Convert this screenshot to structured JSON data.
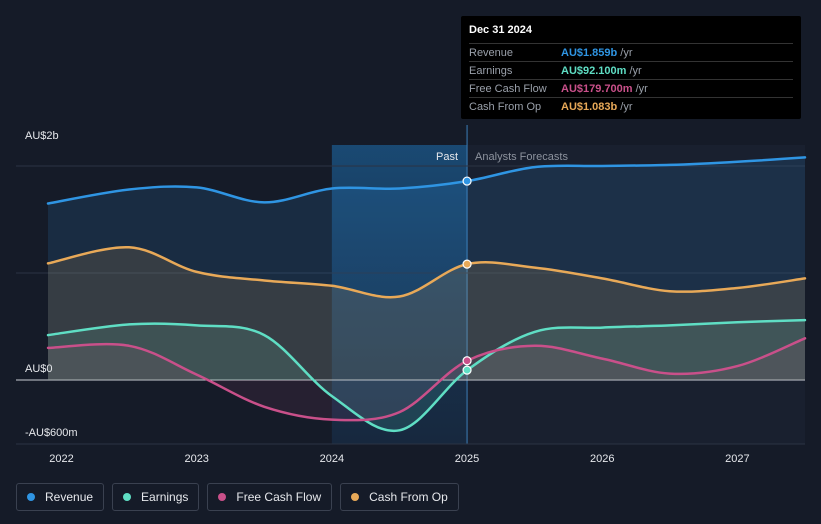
{
  "chart_data": {
    "type": "area",
    "x_range": [
      2021.9,
      2027.5
    ],
    "y_range": [
      -600,
      2000
    ],
    "split_x": 2025.0,
    "highlight_x": [
      2024.0,
      2025.0
    ],
    "y_labels": [
      {
        "value": 2000,
        "label": "AU$2b"
      },
      {
        "value": 0,
        "label": "AU$0"
      },
      {
        "value": -600,
        "label": "-AU$600m"
      }
    ],
    "gridlines": [
      2000,
      1000
    ],
    "x_ticks": [
      {
        "value": 2022,
        "label": "2022"
      },
      {
        "value": 2023,
        "label": "2023"
      },
      {
        "value": 2024,
        "label": "2024"
      },
      {
        "value": 2025,
        "label": "2025"
      },
      {
        "value": 2026,
        "label": "2026"
      },
      {
        "value": 2027,
        "label": "2027"
      }
    ],
    "past_label": "Past",
    "forecast_label": "Analysts Forecasts",
    "series": [
      {
        "name": "Revenue",
        "color": "#2f95e3",
        "fill": true,
        "points": [
          [
            2021.9,
            1650
          ],
          [
            2022.5,
            1780
          ],
          [
            2023.0,
            1800
          ],
          [
            2023.5,
            1660
          ],
          [
            2024.0,
            1790
          ],
          [
            2024.5,
            1790
          ],
          [
            2025.0,
            1859
          ],
          [
            2025.5,
            1990
          ],
          [
            2026.0,
            2000
          ],
          [
            2026.5,
            2010
          ],
          [
            2027.0,
            2040
          ],
          [
            2027.5,
            2080
          ]
        ]
      },
      {
        "name": "Earnings",
        "color": "#5fdec4",
        "fill": true,
        "points": [
          [
            2021.9,
            420
          ],
          [
            2022.5,
            520
          ],
          [
            2023.0,
            510
          ],
          [
            2023.5,
            420
          ],
          [
            2024.0,
            -150
          ],
          [
            2024.5,
            -470
          ],
          [
            2025.0,
            92
          ],
          [
            2025.5,
            450
          ],
          [
            2026.0,
            490
          ],
          [
            2026.5,
            510
          ],
          [
            2027.0,
            540
          ],
          [
            2027.5,
            560
          ]
        ]
      },
      {
        "name": "Free Cash Flow",
        "color": "#c9508a",
        "fill": false,
        "points": [
          [
            2021.9,
            300
          ],
          [
            2022.5,
            320
          ],
          [
            2023.0,
            50
          ],
          [
            2023.5,
            -250
          ],
          [
            2024.0,
            -370
          ],
          [
            2024.5,
            -300
          ],
          [
            2025.0,
            180
          ],
          [
            2025.5,
            320
          ],
          [
            2026.0,
            200
          ],
          [
            2026.5,
            60
          ],
          [
            2027.0,
            130
          ],
          [
            2027.5,
            390
          ]
        ]
      },
      {
        "name": "Cash From Op",
        "color": "#e8a958",
        "fill": true,
        "points": [
          [
            2021.9,
            1090
          ],
          [
            2022.5,
            1240
          ],
          [
            2023.0,
            1010
          ],
          [
            2023.5,
            930
          ],
          [
            2024.0,
            880
          ],
          [
            2024.5,
            780
          ],
          [
            2025.0,
            1083
          ],
          [
            2025.5,
            1050
          ],
          [
            2026.0,
            950
          ],
          [
            2026.5,
            830
          ],
          [
            2027.0,
            860
          ],
          [
            2027.5,
            950
          ]
        ]
      }
    ]
  },
  "tooltip": {
    "date": "Dec 31 2024",
    "rows": [
      {
        "label": "Revenue",
        "value": "AU$1.859b",
        "unit": "/yr",
        "color": "#2f95e3"
      },
      {
        "label": "Earnings",
        "value": "AU$92.100m",
        "unit": "/yr",
        "color": "#5fdec4"
      },
      {
        "label": "Free Cash Flow",
        "value": "AU$179.700m",
        "unit": "/yr",
        "color": "#c9508a"
      },
      {
        "label": "Cash From Op",
        "value": "AU$1.083b",
        "unit": "/yr",
        "color": "#e8a958"
      }
    ]
  },
  "legend": [
    {
      "label": "Revenue",
      "color": "#2f95e3"
    },
    {
      "label": "Earnings",
      "color": "#5fdec4"
    },
    {
      "label": "Free Cash Flow",
      "color": "#c9508a"
    },
    {
      "label": "Cash From Op",
      "color": "#e8a958"
    }
  ]
}
